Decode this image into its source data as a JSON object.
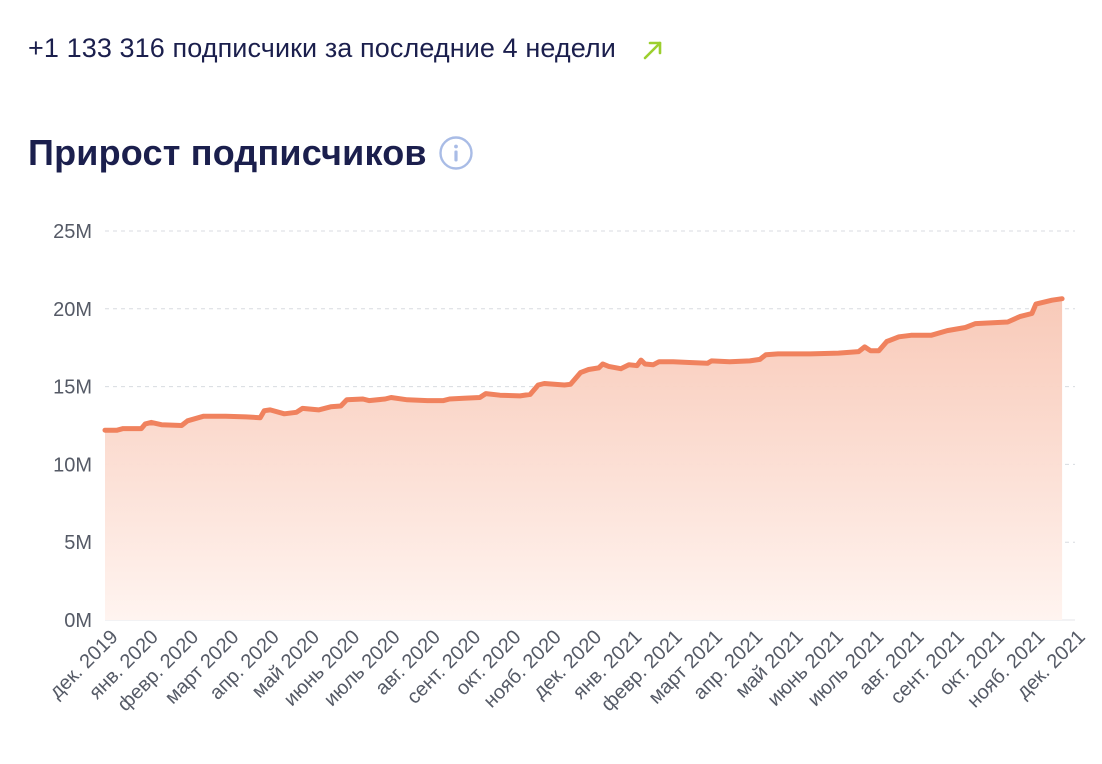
{
  "summary": {
    "text": "+1 133 316 подписчики за последние 4 недели",
    "trend_icon": "arrow-up-right-icon",
    "trend_color": "#9ccf2e"
  },
  "header": {
    "title": "Прирост подписчиков",
    "info_icon": "info-icon"
  },
  "colors": {
    "line": "#f0825e",
    "area_top": "#f8c7b5",
    "area_bottom": "#fff4f0",
    "grid": "#d8dbe0",
    "text": "#1b1f4d",
    "info": "#a9bce6"
  },
  "chart_data": {
    "type": "area",
    "title": "Прирост подписчиков",
    "xlabel": "",
    "ylabel": "",
    "ylim": [
      0,
      25000000
    ],
    "yticks": [
      0,
      5000000,
      10000000,
      15000000,
      20000000,
      25000000
    ],
    "ytick_labels": [
      "0M",
      "5M",
      "10M",
      "15M",
      "20M",
      "25M"
    ],
    "grid": "horizontal dashed",
    "categories": [
      "дек. 2019",
      "янв. 2020",
      "февр. 2020",
      "март 2020",
      "апр. 2020",
      "май 2020",
      "июнь 2020",
      "июль 2020",
      "авг. 2020",
      "сент. 2020",
      "окт. 2020",
      "нояб. 2020",
      "дек. 2020",
      "янв. 2021",
      "февр. 2021",
      "март 2021",
      "апр. 2021",
      "май 2021",
      "июнь 2021",
      "июль 2021",
      "авг. 2021",
      "сент. 2021",
      "окт. 2021",
      "нояб. 2021",
      "дек. 2021"
    ],
    "points": [
      [
        0.0,
        12200000
      ],
      [
        0.3,
        12200000
      ],
      [
        0.45,
        12300000
      ],
      [
        0.9,
        12300000
      ],
      [
        1.0,
        12600000
      ],
      [
        1.15,
        12700000
      ],
      [
        1.4,
        12550000
      ],
      [
        1.9,
        12500000
      ],
      [
        2.05,
        12800000
      ],
      [
        2.45,
        13100000
      ],
      [
        3.0,
        13100000
      ],
      [
        3.5,
        13050000
      ],
      [
        3.85,
        13000000
      ],
      [
        3.95,
        13450000
      ],
      [
        4.1,
        13500000
      ],
      [
        4.45,
        13250000
      ],
      [
        4.75,
        13350000
      ],
      [
        4.9,
        13600000
      ],
      [
        5.3,
        13500000
      ],
      [
        5.6,
        13700000
      ],
      [
        5.85,
        13750000
      ],
      [
        6.0,
        14150000
      ],
      [
        6.4,
        14200000
      ],
      [
        6.55,
        14100000
      ],
      [
        6.95,
        14200000
      ],
      [
        7.1,
        14300000
      ],
      [
        7.5,
        14150000
      ],
      [
        8.0,
        14100000
      ],
      [
        8.4,
        14100000
      ],
      [
        8.55,
        14200000
      ],
      [
        8.9,
        14250000
      ],
      [
        9.3,
        14300000
      ],
      [
        9.45,
        14550000
      ],
      [
        9.8,
        14450000
      ],
      [
        10.3,
        14400000
      ],
      [
        10.55,
        14500000
      ],
      [
        10.75,
        15100000
      ],
      [
        10.9,
        15200000
      ],
      [
        11.4,
        15100000
      ],
      [
        11.55,
        15150000
      ],
      [
        11.8,
        15900000
      ],
      [
        12.0,
        16100000
      ],
      [
        12.25,
        16200000
      ],
      [
        12.35,
        16450000
      ],
      [
        12.5,
        16300000
      ],
      [
        12.7,
        16200000
      ],
      [
        12.8,
        16150000
      ],
      [
        13.0,
        16400000
      ],
      [
        13.2,
        16350000
      ],
      [
        13.3,
        16700000
      ],
      [
        13.4,
        16450000
      ],
      [
        13.6,
        16400000
      ],
      [
        13.75,
        16600000
      ],
      [
        14.1,
        16600000
      ],
      [
        14.5,
        16550000
      ],
      [
        14.95,
        16500000
      ],
      [
        15.05,
        16650000
      ],
      [
        15.5,
        16600000
      ],
      [
        16.0,
        16650000
      ],
      [
        16.25,
        16750000
      ],
      [
        16.4,
        17050000
      ],
      [
        16.7,
        17100000
      ],
      [
        17.5,
        17100000
      ],
      [
        18.2,
        17150000
      ],
      [
        18.7,
        17250000
      ],
      [
        18.85,
        17550000
      ],
      [
        19.0,
        17300000
      ],
      [
        19.2,
        17300000
      ],
      [
        19.4,
        17900000
      ],
      [
        19.7,
        18200000
      ],
      [
        20.0,
        18300000
      ],
      [
        20.5,
        18300000
      ],
      [
        20.9,
        18600000
      ],
      [
        21.35,
        18800000
      ],
      [
        21.6,
        19050000
      ],
      [
        22.4,
        19150000
      ],
      [
        22.7,
        19500000
      ],
      [
        23.0,
        19700000
      ],
      [
        23.1,
        20300000
      ],
      [
        23.5,
        20550000
      ],
      [
        23.75,
        20650000
      ]
    ]
  }
}
